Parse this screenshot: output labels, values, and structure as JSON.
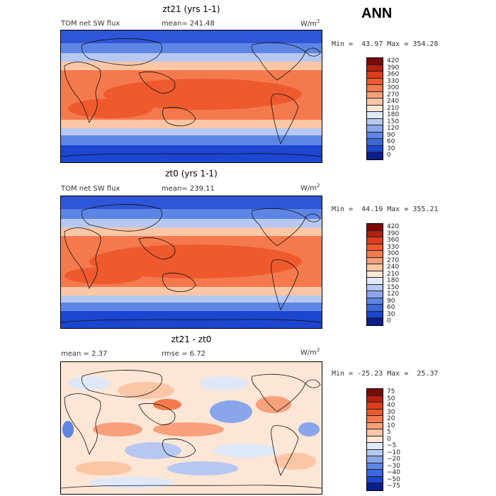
{
  "season": "ANN",
  "panels": [
    {
      "title": "zt21 (yrs 1-1)",
      "left_label": "TOM net SW flux",
      "stat_label": "mean= 241.48",
      "units": "W/m",
      "units_sup": "2",
      "minmax": "Min =  43.97 Max = 354.28",
      "style": "abs",
      "legend": [
        "420",
        "390",
        "360",
        "330",
        "300",
        "270",
        "240",
        "210",
        "180",
        "150",
        "120",
        "90",
        "60",
        "30",
        "0"
      ]
    },
    {
      "title": "zt0 (yrs 1-1)",
      "left_label": "TOM net SW flux",
      "stat_label": "mean= 239.11",
      "units": "W/m",
      "units_sup": "2",
      "minmax": "Min =  44.19 Max = 355.21",
      "style": "abs",
      "legend": [
        "420",
        "390",
        "360",
        "330",
        "300",
        "270",
        "240",
        "210",
        "180",
        "150",
        "120",
        "90",
        "60",
        "30",
        "0"
      ]
    },
    {
      "title": "zt21 - zt0",
      "left_label": "mean =    2.37",
      "stat_label": "rmse =    6.72",
      "units": "W/m",
      "units_sup": "2",
      "minmax": "Min = -25.23 Max =  25.37",
      "style": "diff",
      "legend": [
        "75",
        "50",
        "40",
        "30",
        "20",
        "10",
        "5",
        "0",
        "−5",
        "−10",
        "−20",
        "−30",
        "−40",
        "−50",
        "−75"
      ]
    }
  ],
  "colors": {
    "abs": [
      "#7a0a0a",
      "#b5200e",
      "#dd3d1a",
      "#ee5a2e",
      "#f47a4d",
      "#f7a07a",
      "#fbc6a6",
      "#fde6d6",
      "#dfe8f9",
      "#b6c8f1",
      "#8aa6ea",
      "#5d86e4",
      "#3b67dd",
      "#1c46cf",
      "#0b1f8a"
    ],
    "diff": [
      "#7a0a0a",
      "#b5200e",
      "#dd3d1a",
      "#ee5a2e",
      "#f47a4d",
      "#f7a07a",
      "#fbc6a6",
      "#fde6d6",
      "#dfe8f9",
      "#b6c8f1",
      "#8aa6ea",
      "#5d86e4",
      "#3b67dd",
      "#1c46cf",
      "#0b1f8a"
    ]
  }
}
